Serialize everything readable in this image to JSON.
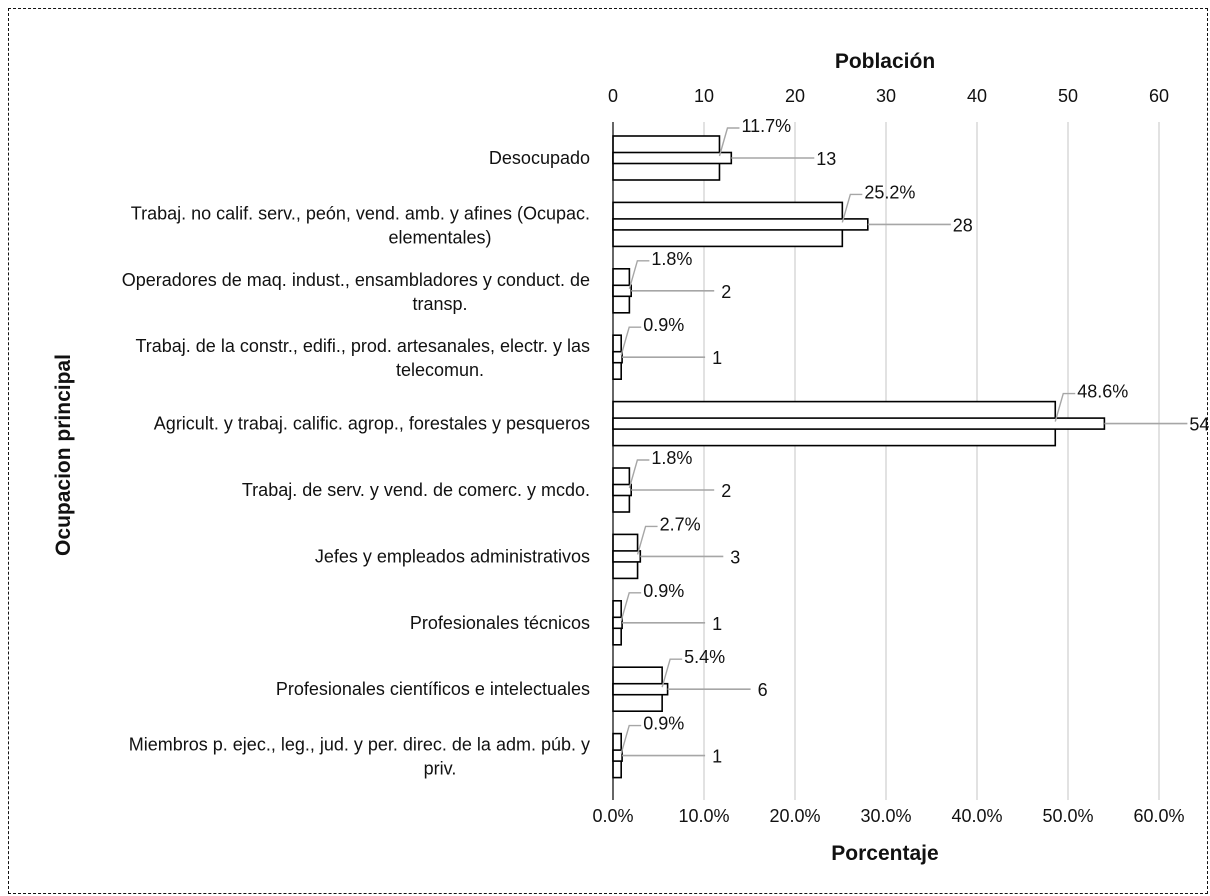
{
  "chart_data": {
    "type": "bar",
    "orientation": "horizontal",
    "top_axis": {
      "title": "Población",
      "ticks": [
        "0",
        "10",
        "20",
        "30",
        "40",
        "50",
        "60"
      ],
      "range": [
        0,
        60
      ]
    },
    "bottom_axis": {
      "title": "Porcentaje",
      "ticks": [
        "0.0%",
        "10.0%",
        "20.0%",
        "30.0%",
        "40.0%",
        "50.0%",
        "60.0%"
      ],
      "range": [
        0,
        60
      ]
    },
    "y_axis_title": "Ocupacion principal",
    "grid": true,
    "categories": [
      [
        "Desocupado"
      ],
      [
        "Trabaj. no calif. serv., peón, vend. amb. y afines (Ocupac.",
        "elementales)"
      ],
      [
        "Operadores de maq. indust., ensambladores y conduct. de",
        "transp."
      ],
      [
        "Trabaj. de la constr., edifi., prod. artesanales, electr. y las",
        "telecomun."
      ],
      [
        "Agricult. y trabaj. calific. agrop., forestales y pesqueros"
      ],
      [
        "Trabaj. de serv. y vend. de comerc. y mcdo."
      ],
      [
        "Jefes y empleados administrativos"
      ],
      [
        "Profesionales técnicos"
      ],
      [
        "Profesionales científicos e intelectuales"
      ],
      [
        "Miembros p. ejec., leg., jud. y per. direc. de la adm. púb. y",
        "priv."
      ]
    ],
    "series": [
      {
        "name": "Porcentaje",
        "axis": "bottom",
        "values": [
          11.7,
          25.2,
          1.8,
          0.9,
          48.6,
          1.8,
          2.7,
          0.9,
          5.4,
          0.9
        ],
        "labels": [
          "11.7%",
          "25.2%",
          "1.8%",
          "0.9%",
          "48.6%",
          "1.8%",
          "2.7%",
          "0.9%",
          "5.4%",
          "0.9%"
        ]
      },
      {
        "name": "Población",
        "axis": "top",
        "values": [
          13,
          28,
          2,
          1,
          54,
          2,
          3,
          1,
          6,
          1
        ],
        "labels": [
          "13",
          "28",
          "2",
          "1",
          "54",
          "2",
          "3",
          "1",
          "6",
          "1"
        ]
      }
    ],
    "colors": {
      "bar_fill": "#ffffff",
      "bar_stroke": "#000000",
      "grid": "#d9d9d9",
      "leader": "#a6a6a6"
    }
  }
}
